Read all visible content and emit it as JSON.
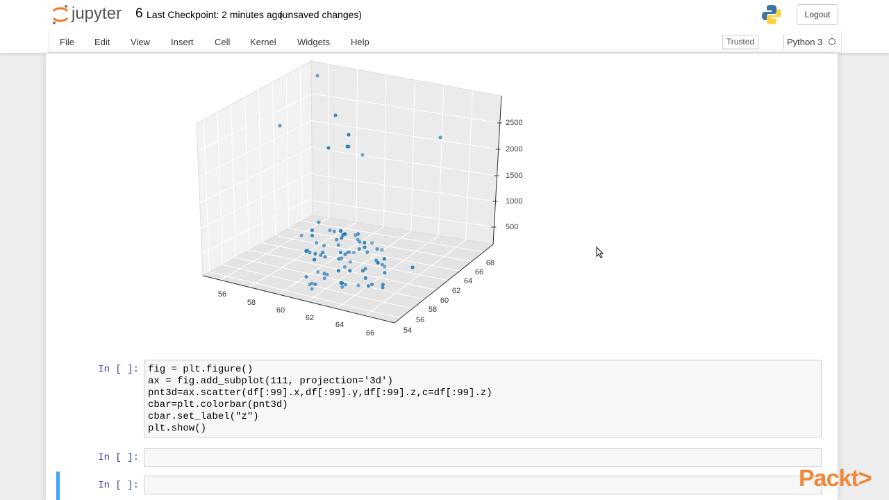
{
  "header": {
    "logo": "jupyter",
    "notebook_name": "6",
    "checkpoint": "Last Checkpoint: 2 minutes ago",
    "status": "(unsaved changes)",
    "logout": "Logout"
  },
  "menu": [
    "File",
    "Edit",
    "View",
    "Insert",
    "Cell",
    "Kernel",
    "Widgets",
    "Help"
  ],
  "trusted": "Trusted",
  "kernel": "Python 3",
  "plot": {
    "z_ticks": [
      2500,
      2000,
      1500,
      1000,
      500
    ],
    "x_ticks": [
      56,
      58,
      60,
      62,
      64,
      66
    ],
    "y_ticks": [
      54,
      56,
      58,
      60,
      62,
      64,
      66,
      68
    ]
  },
  "cells": [
    {
      "prompt": "In [ ]:",
      "code": [
        "fig = plt.figure()",
        "ax = fig.add_subplot(111, projection='3d')",
        "pnt3d=ax.scatter(df[:99].x,df[:99].y,df[:99].z,c=df[:99].z)",
        "cbar=plt.colorbar(pnt3d)",
        "cbar.set_label(\"z\")",
        "plt.show()"
      ]
    },
    {
      "prompt": "In [ ]:",
      "code": []
    },
    {
      "prompt": "In [ ]:",
      "code": []
    }
  ],
  "brand": "Packt>"
}
